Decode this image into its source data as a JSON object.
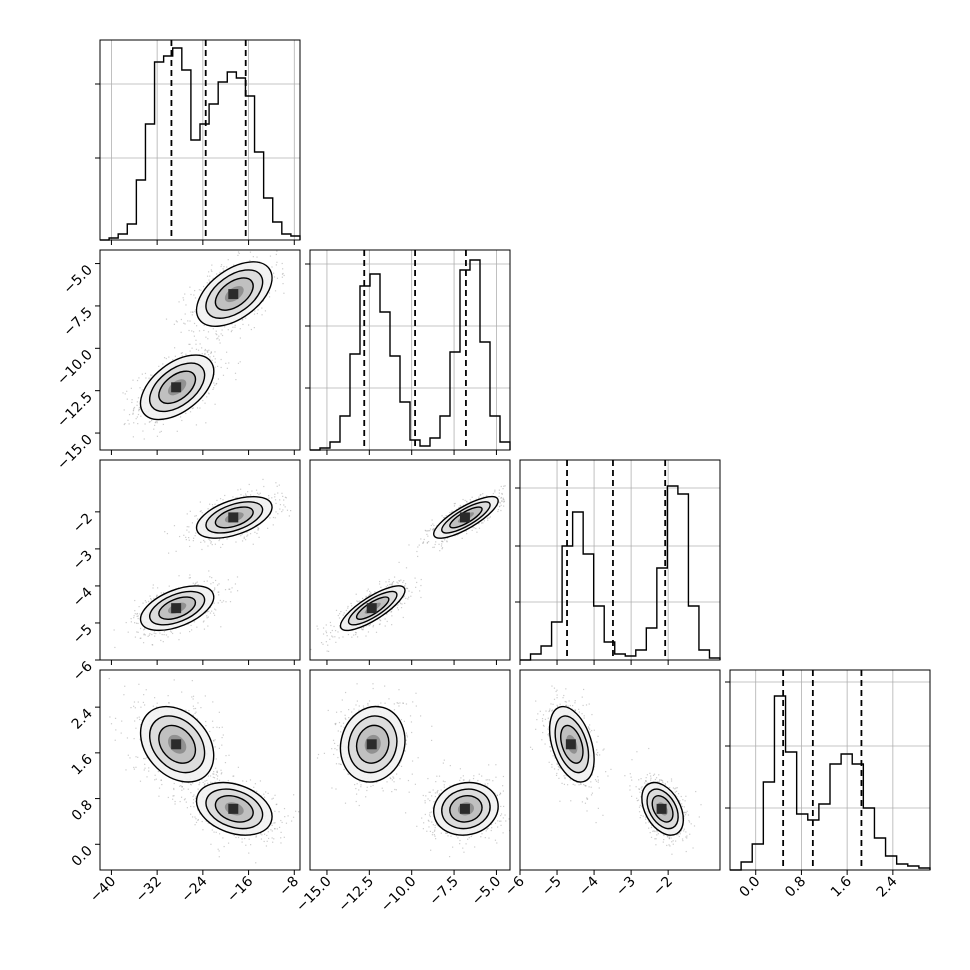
{
  "chart_data": {
    "type": "corner",
    "grid": true,
    "parameters": [
      {
        "range": [
          -42,
          -7
        ],
        "ticks": [
          -40,
          -32,
          -24,
          -16,
          -8
        ],
        "tick_labels": [
          "−40",
          "−32",
          "−24",
          "−16",
          "−8"
        ],
        "quantiles": [
          -29.5,
          -23.5,
          -16.5
        ],
        "histogram": [
          0,
          0.01,
          0.03,
          0.08,
          0.3,
          0.58,
          0.89,
          0.92,
          0.96,
          0.85,
          0.5,
          0.58,
          0.68,
          0.79,
          0.84,
          0.81,
          0.72,
          0.44,
          0.21,
          0.09,
          0.03,
          0.02
        ],
        "hist_yticks_frac": [
          0.41,
          0.78
        ]
      },
      {
        "range": [
          -16,
          -4.2
        ],
        "ticks": [
          -15.0,
          -12.5,
          -10.0,
          -7.5,
          -5.0
        ],
        "tick_labels": [
          "−15.0",
          "−12.5",
          "−10.0",
          "−7.5",
          "−5.0"
        ],
        "quantiles": [
          -12.8,
          -9.8,
          -6.8
        ],
        "histogram": [
          0,
          0.01,
          0.04,
          0.17,
          0.48,
          0.82,
          0.88,
          0.69,
          0.47,
          0.24,
          0.05,
          0.02,
          0.06,
          0.17,
          0.49,
          0.9,
          0.95,
          0.54,
          0.17,
          0.04
        ],
        "hist_yticks_frac": [
          0.31,
          0.62,
          0.93
        ]
      },
      {
        "range": [
          -6.0,
          -0.6
        ],
        "ticks": [
          -6,
          -5,
          -4,
          -3,
          -2
        ],
        "tick_labels": [
          "−6",
          "−5",
          "−4",
          "−3",
          "−2"
        ],
        "quantiles": [
          -4.73,
          -3.49,
          -2.08
        ],
        "histogram": [
          0,
          0.03,
          0.07,
          0.19,
          0.57,
          0.74,
          0.53,
          0.27,
          0.09,
          0.03,
          0.02,
          0.05,
          0.16,
          0.46,
          0.87,
          0.83,
          0.27,
          0.05,
          0.01
        ],
        "hist_yticks_frac": [
          0.29,
          0.57,
          0.86
        ]
      },
      {
        "range": [
          -0.45,
          3.05
        ],
        "ticks": [
          0.0,
          0.8,
          1.6,
          2.4
        ],
        "tick_labels": [
          "0.0",
          "0.8",
          "1.6",
          "2.4"
        ],
        "quantiles": [
          0.48,
          1.0,
          1.85
        ],
        "histogram": [
          0,
          0.04,
          0.13,
          0.44,
          0.87,
          0.59,
          0.28,
          0.25,
          0.33,
          0.53,
          0.58,
          0.53,
          0.31,
          0.16,
          0.07,
          0.03,
          0.02,
          0.01
        ],
        "hist_yticks_frac": [
          0.31,
          0.62,
          0.94
        ]
      }
    ],
    "modes": [
      {
        "center": [
          -28.5,
          -12.3,
          -4.6,
          1.75
        ],
        "sd": [
          3.2,
          0.95,
          0.3,
          0.33
        ],
        "weight": 0.5
      },
      {
        "center": [
          -18.5,
          -6.8,
          -2.15,
          0.62
        ],
        "sd": [
          3.3,
          0.95,
          0.28,
          0.23
        ],
        "weight": 0.5
      }
    ],
    "corr": [
      [
        1.0,
        0.5,
        0.5,
        -0.3
      ],
      [
        0.5,
        1.0,
        0.8,
        0.1
      ],
      [
        0.5,
        0.8,
        1.0,
        -0.4
      ],
      [
        -0.3,
        0.1,
        -0.4,
        1.0
      ]
    ]
  }
}
